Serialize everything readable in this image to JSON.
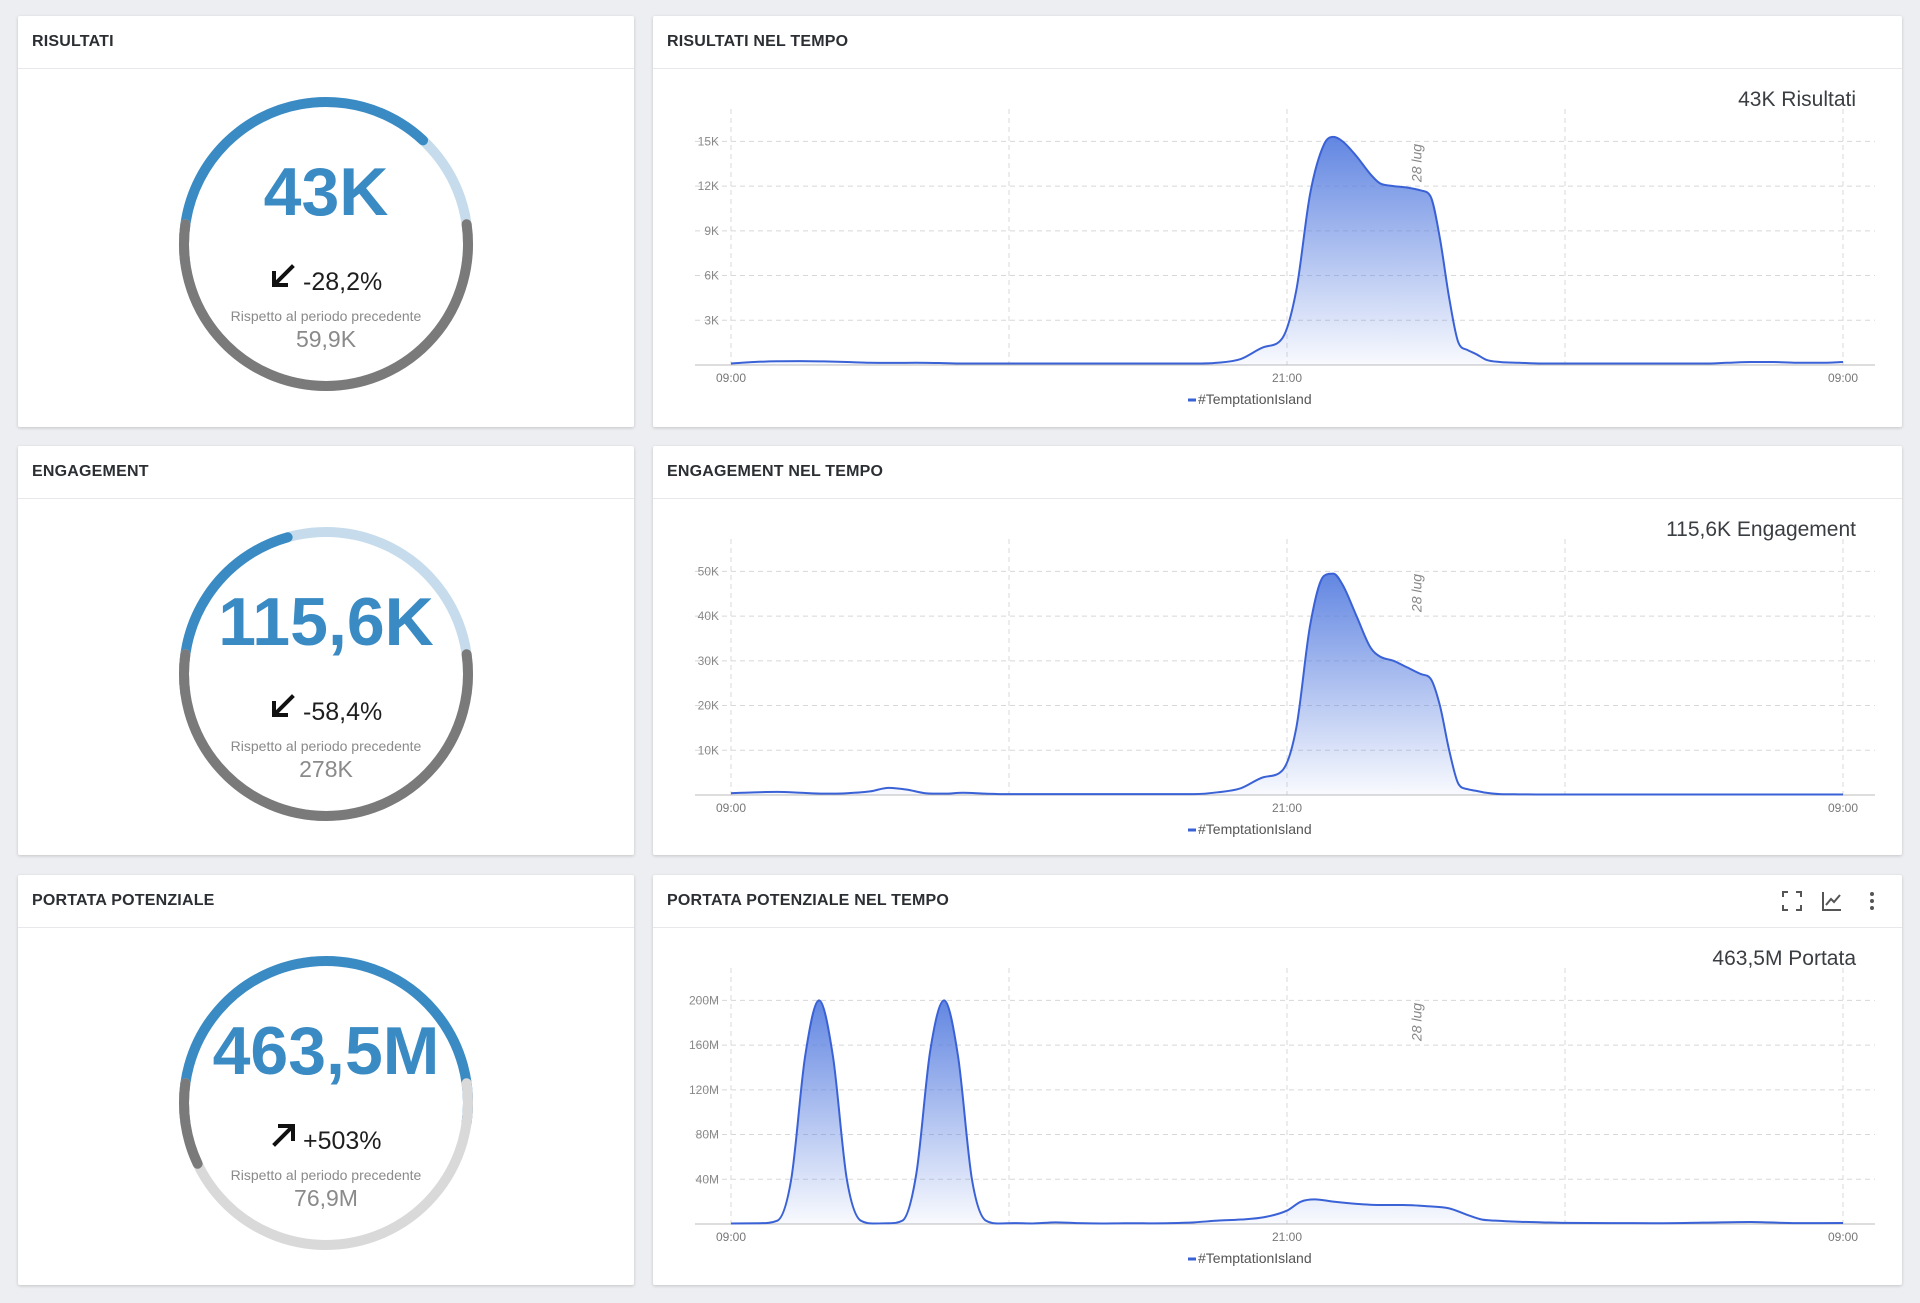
{
  "colors": {
    "gauge_blue": "#3a8bc4",
    "gauge_light": "#c6dcec",
    "gauge_dark": "#7a7a7a",
    "gauge_grey_light": "#d9d9d9",
    "series_line": "#3a62d6",
    "series_fill_top": "#5a80e0"
  },
  "panels": [
    {
      "title": "RISULTATI",
      "value": "43K",
      "change": "-28,2%",
      "direction": "down",
      "comparison_label": "Rispetto al periodo precedente",
      "previous": "59,9K",
      "arc_fill_fraction": 0.72,
      "lower_fill_fraction": 1.0
    },
    {
      "title": "ENGAGEMENT",
      "value": "115,6K",
      "change": "-58,4%",
      "direction": "down",
      "comparison_label": "Rispetto al periodo precedente",
      "previous": "278K",
      "arc_fill_fraction": 0.42,
      "lower_fill_fraction": 1.0
    },
    {
      "title": "PORTATA POTENZIALE",
      "value": "463,5M",
      "change": "+503%",
      "direction": "up",
      "comparison_label": "Rispetto al periodo precedente",
      "previous": "76,9M",
      "arc_fill_fraction": 1.0,
      "lower_fill_fraction": 0.17
    }
  ],
  "timeline_panels": [
    {
      "title": "RISULTATI NEL TEMPO",
      "total_label": "43K Risultati",
      "show_icons": false
    },
    {
      "title": "ENGAGEMENT NEL TEMPO",
      "total_label": "115,6K Engagement",
      "show_icons": false
    },
    {
      "title": "PORTATA POTENZIALE NEL TEMPO",
      "total_label": "463,5M Portata",
      "show_icons": true,
      "icons": [
        "fullscreen-icon",
        "line-chart-icon",
        "more-vert-icon"
      ]
    }
  ],
  "chart_data": [
    {
      "type": "area",
      "title": "RISULTATI NEL TEMPO",
      "x_tick_labels": [
        "09:00",
        "21:00",
        "09:00"
      ],
      "x_tick_positions": [
        0,
        12,
        24
      ],
      "date_marker": {
        "x": 14.8,
        "label": "28 lug"
      },
      "y_ticks": [
        3000,
        6000,
        9000,
        12000,
        15000
      ],
      "y_tick_labels": [
        "3K",
        "6K",
        "9K",
        "12K",
        "15K"
      ],
      "ylim": [
        0,
        16500
      ],
      "xlim": [
        0,
        24
      ],
      "legend": "#TemptationIsland",
      "series": [
        {
          "name": "#TemptationIsland",
          "x": [
            0,
            0.5,
            1,
            1.5,
            2,
            2.5,
            3,
            3.5,
            4,
            4.5,
            5,
            5.5,
            6,
            6.5,
            7,
            7.5,
            8,
            8.5,
            9,
            9.5,
            10,
            10.5,
            11,
            11.5,
            11.9,
            12.2,
            12.5,
            12.8,
            13,
            13.2,
            13.5,
            13.8,
            14,
            14.3,
            14.6,
            14.9,
            15.1,
            15.3,
            15.5,
            15.7,
            15.9,
            16.1,
            16.3,
            16.6,
            17,
            17.5,
            18,
            18.5,
            19,
            19.5,
            20,
            20.5,
            21,
            21.5,
            22,
            22.5,
            23,
            23.5,
            24
          ],
          "values": [
            100,
            200,
            250,
            260,
            240,
            200,
            150,
            140,
            150,
            130,
            100,
            100,
            100,
            100,
            100,
            100,
            100,
            100,
            100,
            100,
            100,
            150,
            400,
            1200,
            1800,
            5000,
            11500,
            14800,
            15300,
            15000,
            14000,
            12800,
            12200,
            12000,
            11900,
            11700,
            11300,
            8500,
            4500,
            1500,
            1000,
            700,
            350,
            200,
            150,
            100,
            100,
            100,
            100,
            100,
            100,
            100,
            100,
            150,
            200,
            200,
            150,
            150,
            200
          ]
        }
      ]
    },
    {
      "type": "area",
      "title": "ENGAGEMENT NEL TEMPO",
      "x_tick_labels": [
        "09:00",
        "21:00",
        "09:00"
      ],
      "x_tick_positions": [
        0,
        12,
        24
      ],
      "date_marker": {
        "x": 14.8,
        "label": "28 lug"
      },
      "y_ticks": [
        10000,
        20000,
        30000,
        40000,
        50000
      ],
      "y_tick_labels": [
        "10K",
        "20K",
        "30K",
        "40K",
        "50K"
      ],
      "ylim": [
        0,
        55000
      ],
      "xlim": [
        0,
        24
      ],
      "legend": "#TemptationIsland",
      "series": [
        {
          "name": "#TemptationIsland",
          "x": [
            0,
            0.5,
            1,
            1.5,
            2,
            2.5,
            3,
            3.4,
            3.8,
            4.2,
            4.6,
            5,
            5.5,
            6,
            6.5,
            7,
            7.5,
            8,
            8.5,
            9,
            9.5,
            10,
            10.5,
            11,
            11.5,
            11.9,
            12.2,
            12.5,
            12.8,
            13,
            13.2,
            13.5,
            13.8,
            14,
            14.3,
            14.6,
            14.9,
            15.1,
            15.3,
            15.5,
            15.7,
            15.9,
            16.1,
            16.3,
            16.6,
            17,
            17.5,
            18,
            18.5,
            19,
            19.5,
            20,
            21,
            22,
            23,
            24
          ],
          "values": [
            400,
            600,
            700,
            500,
            300,
            400,
            800,
            1600,
            1200,
            400,
            300,
            500,
            300,
            200,
            200,
            200,
            200,
            200,
            200,
            200,
            200,
            200,
            600,
            1500,
            4000,
            5500,
            15000,
            38000,
            49000,
            49500,
            47000,
            40000,
            33000,
            31000,
            30000,
            28500,
            27000,
            26000,
            20000,
            10000,
            2500,
            1300,
            900,
            500,
            200,
            150,
            100,
            100,
            100,
            100,
            100,
            100,
            100,
            100,
            100,
            100
          ]
        }
      ]
    },
    {
      "type": "area",
      "title": "PORTATA POTENZIALE NEL TEMPO",
      "x_tick_labels": [
        "09:00",
        "21:00",
        "09:00"
      ],
      "x_tick_positions": [
        0,
        12,
        24
      ],
      "date_marker": {
        "x": 14.8,
        "label": "28 lug"
      },
      "y_ticks": [
        40000000,
        80000000,
        120000000,
        160000000,
        200000000
      ],
      "y_tick_labels": [
        "40M",
        "80M",
        "120M",
        "160M",
        "200M"
      ],
      "ylim": [
        0,
        220000000
      ],
      "xlim": [
        0,
        24
      ],
      "legend": "#TemptationIsland",
      "series": [
        {
          "name": "#TemptationIsland",
          "x": [
            0,
            0.6,
            1,
            1.3,
            1.6,
            1.9,
            2.2,
            2.5,
            2.8,
            3.1,
            3.4,
            3.7,
            4,
            4.3,
            4.6,
            4.9,
            5.2,
            5.5,
            5.8,
            6.1,
            6.5,
            7,
            7.5,
            8,
            8.5,
            9,
            9.5,
            10,
            10.5,
            11,
            11.5,
            12,
            12.3,
            12.6,
            13,
            13.5,
            14,
            14.5,
            15,
            15.5,
            15.9,
            16.2,
            16.5,
            17,
            17.5,
            18,
            19,
            20,
            21,
            22,
            23,
            24
          ],
          "values": [
            500000,
            700000,
            3000000,
            40000000,
            150000000,
            200000000,
            150000000,
            40000000,
            3000000,
            500000,
            700000,
            3000000,
            45000000,
            155000000,
            200000000,
            150000000,
            40000000,
            3000000,
            500000,
            800000,
            500000,
            1500000,
            800000,
            500000,
            700000,
            600000,
            800000,
            1500000,
            3000000,
            4000000,
            6000000,
            12000000,
            20000000,
            22000000,
            20000000,
            18000000,
            17000000,
            17000000,
            16000000,
            14000000,
            8000000,
            4000000,
            3000000,
            2000000,
            1500000,
            1000000,
            800000,
            700000,
            1200000,
            1800000,
            800000,
            900000
          ]
        }
      ]
    }
  ]
}
